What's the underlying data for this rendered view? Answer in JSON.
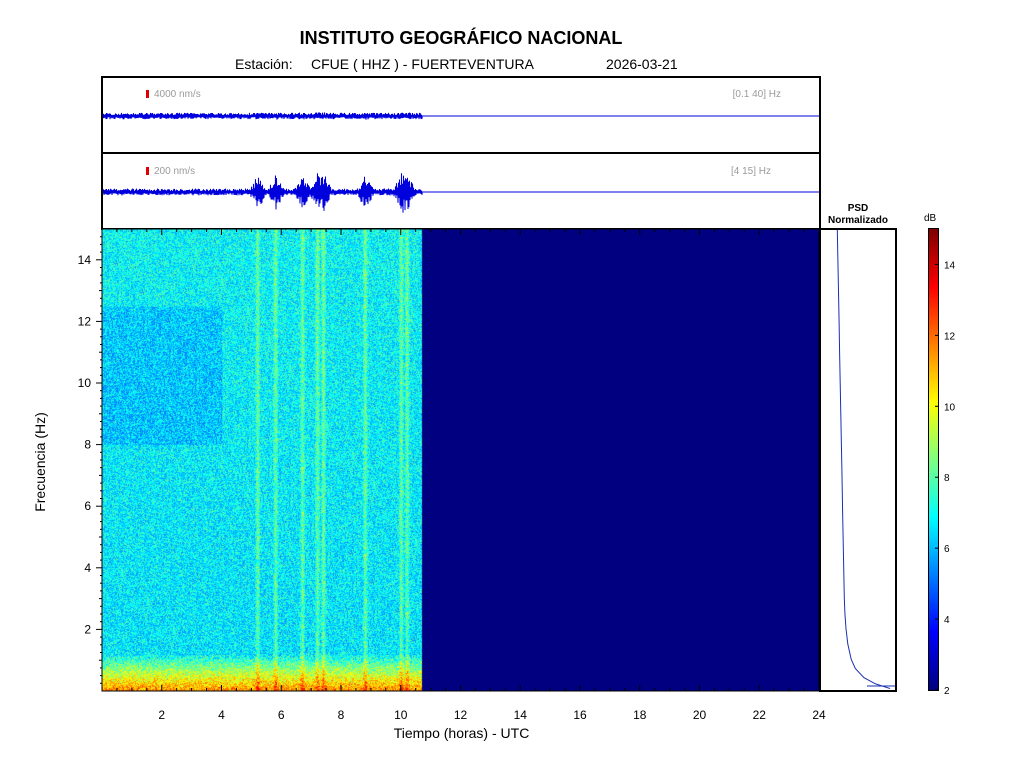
{
  "header": {
    "title": "INSTITUTO GEOGRÁFICO NACIONAL",
    "station_label": "Estación:",
    "station": "CFUE ( HHZ ) - FUERTEVENTURA",
    "date": "2026-03-21"
  },
  "trace_broadband": {
    "scale": "4000 nm/s",
    "band": "[0.1 40] Hz",
    "color": "#0000dd"
  },
  "trace_filtered": {
    "scale": "200 nm/s",
    "band": "[4 15] Hz",
    "color": "#0000dd"
  },
  "psd_panel": {
    "title_line1": "PSD",
    "title_line2": "Normalizado"
  },
  "colorbar": {
    "unit": "dB",
    "min": 2,
    "max": 15,
    "ticks": [
      "2",
      "4",
      "6",
      "8",
      "10",
      "12",
      "14"
    ]
  },
  "axes": {
    "xlabel": "Tiempo (horas) - UTC",
    "ylabel": "Frecuencia  (Hz)",
    "xlim": [
      0,
      24
    ],
    "ylim": [
      0,
      15
    ],
    "xticks": [
      "2",
      "4",
      "6",
      "8",
      "10",
      "12",
      "14",
      "16",
      "18",
      "20",
      "22",
      "24"
    ],
    "yticks": [
      "2",
      "4",
      "6",
      "8",
      "10",
      "12",
      "14"
    ]
  },
  "chart_data": {
    "type": "heatmap",
    "title": "INSTITUTO GEOGRÁFICO NACIONAL",
    "xlabel": "Tiempo (horas) - UTC",
    "ylabel": "Frecuencia  (Hz)",
    "xlim": [
      0,
      24
    ],
    "ylim": [
      0,
      15
    ],
    "data_end_hour": 10.7,
    "no_data_value_db": 2,
    "colormap": "jet",
    "color_range_db": [
      2,
      15
    ],
    "event_bursts_hours": [
      5.2,
      5.8,
      6.7,
      7.2,
      7.4,
      8.8,
      10.0,
      10.2
    ],
    "psd_normalized": {
      "freq_hz": [
        0.05,
        0.2,
        0.4,
        0.7,
        1.0,
        1.5,
        2.0,
        2.5,
        3.0,
        4.0,
        5.0,
        6.0,
        7.0,
        8.0,
        9.0,
        10.0,
        11.0,
        12.0,
        13.0,
        14.0,
        15.0
      ],
      "value": [
        0.95,
        0.7,
        0.5,
        0.35,
        0.28,
        0.22,
        0.19,
        0.17,
        0.16,
        0.15,
        0.14,
        0.13,
        0.12,
        0.11,
        0.1,
        0.09,
        0.08,
        0.07,
        0.06,
        0.05,
        0.04
      ]
    }
  }
}
